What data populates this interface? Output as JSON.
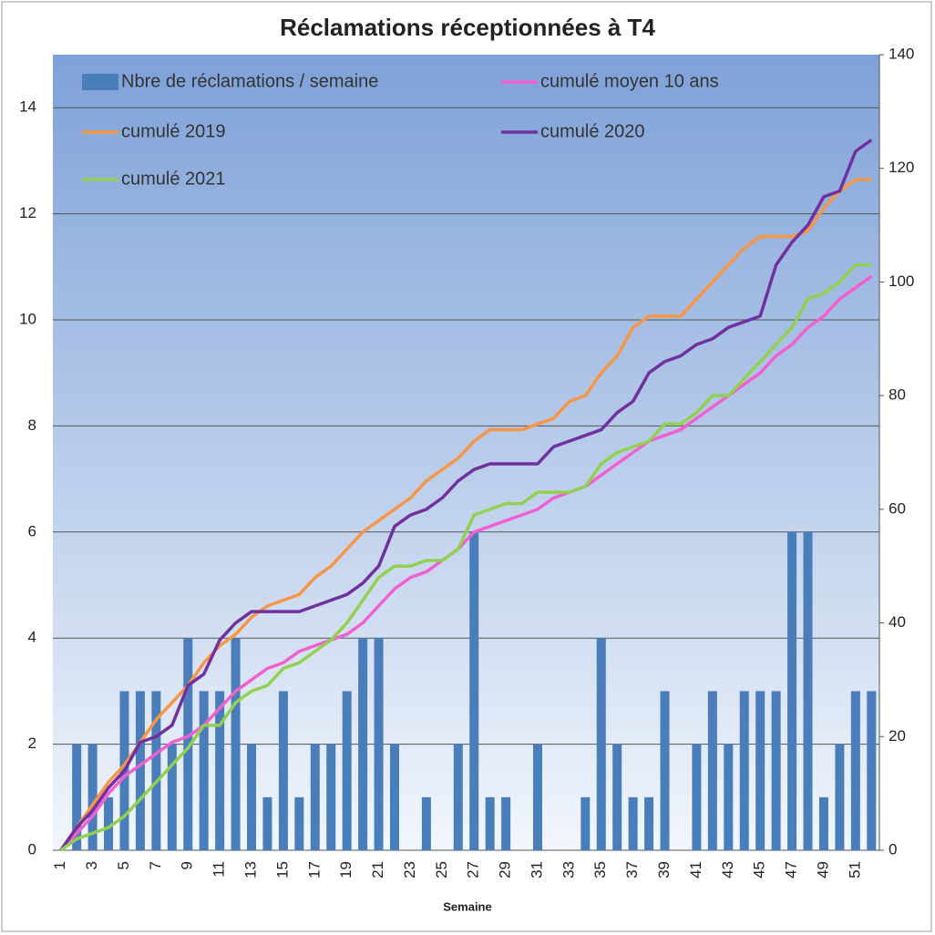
{
  "chart_data": {
    "type": "combo",
    "title": "Réclamations réceptionnées à T4",
    "x_label": "Semaine",
    "categories": [
      "1",
      null,
      "3",
      null,
      "5",
      null,
      "7",
      null,
      "9",
      null,
      "11",
      null,
      "13",
      null,
      "15",
      null,
      "17",
      null,
      "19",
      null,
      "21",
      null,
      "23",
      null,
      "25",
      null,
      "27",
      null,
      "29",
      null,
      "31",
      null,
      "33",
      null,
      "35",
      null,
      "37",
      null,
      "39",
      null,
      "41",
      null,
      "43",
      null,
      "45",
      null,
      "47",
      null,
      "49",
      null,
      "51",
      null
    ],
    "ylim": [
      0,
      15
    ],
    "yticks": [
      0,
      2,
      4,
      6,
      8,
      10,
      12,
      14
    ],
    "y2lim": [
      0,
      140
    ],
    "y2ticks": [
      0,
      20,
      40,
      60,
      80,
      100,
      120,
      140
    ],
    "grid": true,
    "legend": "top",
    "series": [
      {
        "name": "Nbre de réclamations / semaine",
        "type": "bar",
        "color": "#4a7ebb",
        "values": [
          0,
          2,
          2,
          1,
          3,
          3,
          3,
          2,
          4,
          3,
          3,
          4,
          2,
          1,
          3,
          1,
          2,
          2,
          3,
          4,
          4,
          2,
          0,
          1,
          0,
          2,
          6,
          1,
          1,
          0,
          2,
          0,
          0,
          1,
          4,
          2,
          1,
          1,
          3,
          0,
          2,
          3,
          2,
          3,
          3,
          3,
          6,
          6,
          1,
          2,
          3,
          3
        ]
      },
      {
        "name": "cumulé moyen 10 ans",
        "type": "line",
        "axis": "y2",
        "color": "#f060d0",
        "values": [
          0,
          3,
          6,
          10,
          13,
          15,
          17,
          19,
          20,
          22,
          25,
          28,
          30,
          32,
          33,
          35,
          36,
          37,
          38,
          40,
          43,
          46,
          48,
          49,
          51,
          53,
          56,
          57,
          58,
          59,
          60,
          62,
          63,
          64,
          66,
          68,
          70,
          72,
          73,
          74,
          76,
          78,
          80,
          82,
          84,
          87,
          89,
          92,
          94,
          97,
          99,
          101
        ]
      },
      {
        "name": "cumulé 2019",
        "type": "line",
        "axis": "y2",
        "color": "#f79646",
        "values": [
          0,
          4,
          8,
          12,
          15,
          19,
          23,
          26,
          29,
          33,
          36,
          38,
          41,
          43,
          44,
          45,
          48,
          50,
          53,
          56,
          58,
          60,
          62,
          65,
          67,
          69,
          72,
          74,
          74,
          74,
          75,
          76,
          79,
          80,
          84,
          87,
          92,
          94,
          94,
          94,
          97,
          100,
          103,
          106,
          108,
          108,
          108,
          109,
          113,
          116,
          118,
          118
        ]
      },
      {
        "name": "cumulé 2020",
        "type": "line",
        "axis": "y2",
        "color": "#7030a0",
        "values": [
          0,
          4,
          7,
          11,
          14,
          19,
          20,
          22,
          29,
          31,
          37,
          40,
          42,
          42,
          42,
          42,
          43,
          44,
          45,
          47,
          50,
          57,
          59,
          60,
          62,
          65,
          67,
          68,
          68,
          68,
          68,
          71,
          72,
          73,
          74,
          77,
          79,
          84,
          86,
          87,
          89,
          90,
          92,
          93,
          94,
          103,
          107,
          110,
          115,
          116,
          123,
          125
        ]
      },
      {
        "name": "cumulé 2021",
        "type": "line",
        "axis": "y2",
        "color": "#92d050",
        "values": [
          0,
          2,
          3,
          4,
          6,
          9,
          12,
          15,
          18,
          22,
          22,
          26,
          28,
          29,
          32,
          33,
          35,
          37,
          40,
          44,
          48,
          50,
          50,
          51,
          51,
          53,
          59,
          60,
          61,
          61,
          63,
          63,
          63,
          64,
          68,
          70,
          71,
          72,
          75,
          75,
          77,
          80,
          80,
          83,
          86,
          89,
          92,
          97,
          98,
          100,
          103,
          103
        ]
      }
    ]
  }
}
